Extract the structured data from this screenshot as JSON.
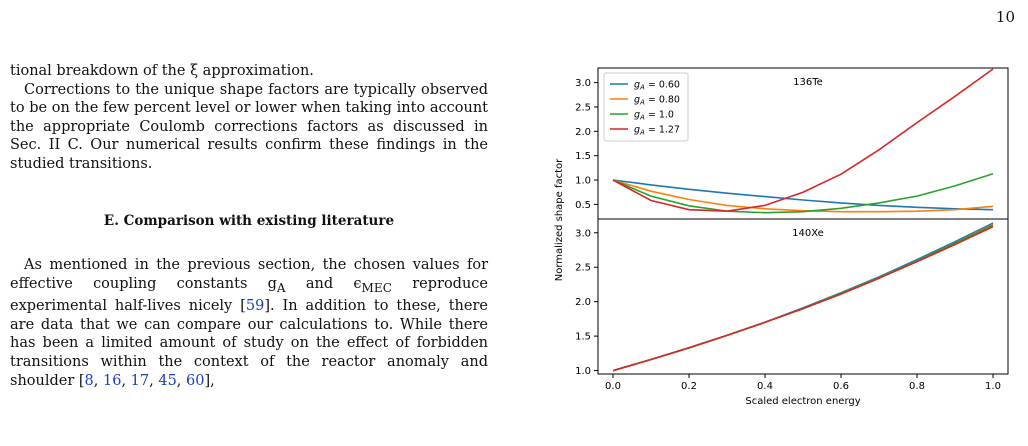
{
  "page": {
    "number": "10"
  },
  "text": {
    "p1": "tional breakdown of the ξ approximation.",
    "p2": "Corrections to the unique shape factors are typically observed to be on the few percent level or lower when taking into account the appropriate Coulomb corrections factors as discussed in Sec. II C. Our numerical results confirm these findings in the studied transitions.",
    "section_heading": "E.    Comparison with existing literature",
    "p3_a": "As mentioned in the previous section, the chosen values for effective coupling constants g",
    "p3_a_sub": "A",
    "p3_b": " and ϵ",
    "p3_b_sub": "MEC",
    "p3_c": " reproduce experimental half-lives nicely [",
    "p3_ref1": "59",
    "p3_d": "]. In addition to these, there are data that we can compare our calculations to. While there has been a limited amount of study on the effect of forbidden transitions within the context of the reactor anomaly and shoulder [",
    "p3_refs": [
      "8",
      "16",
      "17",
      "45",
      "60"
    ],
    "p3_e": "],"
  },
  "figure": {
    "ylabel": "Normalized shape factor",
    "xlabel": "Scaled electron energy",
    "colors": {
      "blue": "#1f77b4",
      "orange": "#ff7f0e",
      "green": "#2ca02c",
      "red": "#d62728"
    }
  },
  "chart_data": [
    {
      "type": "line",
      "title": "136Te",
      "xlim": [
        0,
        1
      ],
      "ylim": [
        0.2,
        3.3
      ],
      "y_ticks": [
        "0.5",
        "1.0",
        "1.5",
        "2.0",
        "2.5",
        "3.0"
      ],
      "legend_position": "top-left",
      "x": [
        0.0,
        0.1,
        0.2,
        0.3,
        0.4,
        0.5,
        0.6,
        0.7,
        0.8,
        0.9,
        1.0
      ],
      "series": [
        {
          "name": "g_A = 0.60",
          "color": "#1f77b4",
          "values": [
            1.0,
            0.9,
            0.81,
            0.73,
            0.66,
            0.59,
            0.53,
            0.48,
            0.44,
            0.41,
            0.39
          ]
        },
        {
          "name": "g_A = 0.80",
          "color": "#ff7f0e",
          "values": [
            1.0,
            0.77,
            0.6,
            0.48,
            0.41,
            0.37,
            0.35,
            0.35,
            0.36,
            0.39,
            0.46
          ]
        },
        {
          "name": "g_A = 1.0",
          "color": "#2ca02c",
          "values": [
            1.0,
            0.67,
            0.47,
            0.36,
            0.33,
            0.35,
            0.42,
            0.53,
            0.67,
            0.88,
            1.13
          ]
        },
        {
          "name": "g_A = 1.27",
          "color": "#d62728",
          "values": [
            1.0,
            0.58,
            0.39,
            0.36,
            0.48,
            0.75,
            1.12,
            1.62,
            2.18,
            2.72,
            3.28
          ]
        }
      ]
    },
    {
      "type": "line",
      "title": "140Xe",
      "xlim": [
        0,
        1
      ],
      "ylim": [
        0.95,
        3.2
      ],
      "x_ticks": [
        "0.0",
        "0.2",
        "0.4",
        "0.6",
        "0.8",
        "1.0"
      ],
      "y_ticks": [
        "1.0",
        "1.5",
        "2.0",
        "2.5",
        "3.0"
      ],
      "x": [
        0.0,
        0.1,
        0.2,
        0.3,
        0.4,
        0.5,
        0.6,
        0.7,
        0.8,
        0.9,
        1.0
      ],
      "series": [
        {
          "color": "#1f77b4",
          "values": [
            1.0,
            1.16,
            1.33,
            1.51,
            1.7,
            1.91,
            2.13,
            2.36,
            2.61,
            2.87,
            3.14
          ]
        },
        {
          "color": "#ff7f0e",
          "values": [
            1.0,
            1.16,
            1.33,
            1.51,
            1.7,
            1.9,
            2.12,
            2.35,
            2.59,
            2.85,
            3.12
          ]
        },
        {
          "color": "#2ca02c",
          "values": [
            1.0,
            1.16,
            1.33,
            1.51,
            1.7,
            1.9,
            2.12,
            2.35,
            2.59,
            2.85,
            3.11
          ]
        },
        {
          "color": "#d62728",
          "values": [
            1.0,
            1.16,
            1.33,
            1.51,
            1.7,
            1.9,
            2.11,
            2.34,
            2.58,
            2.83,
            3.09
          ]
        }
      ]
    }
  ]
}
